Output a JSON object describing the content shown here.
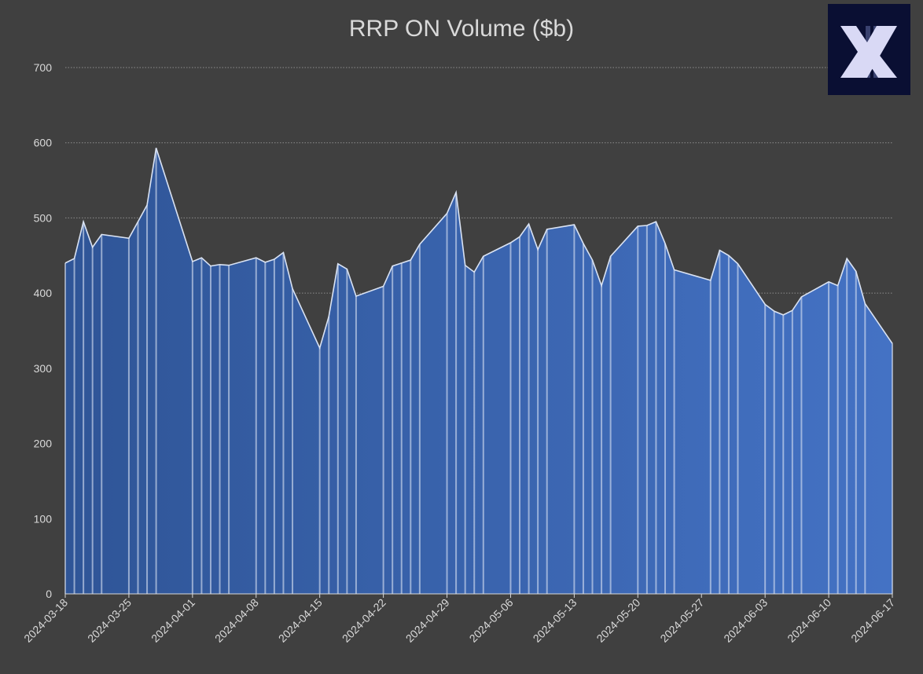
{
  "chart_data": {
    "type": "area",
    "title": "RRP ON Volume ($b)",
    "xlabel": "",
    "ylabel": "",
    "ylim": [
      0,
      700
    ],
    "yticks": [
      0,
      100,
      200,
      300,
      400,
      500,
      600,
      700
    ],
    "xticks": [
      "2024-03-18",
      "2024-03-25",
      "2024-04-01",
      "2024-04-08",
      "2024-04-15",
      "2024-04-22",
      "2024-04-29",
      "2024-05-06",
      "2024-05-13",
      "2024-05-20",
      "2024-05-27",
      "2024-06-03",
      "2024-06-10",
      "2024-06-17"
    ],
    "grid": true,
    "legend": "none",
    "x": [
      "2024-03-18",
      "2024-03-19",
      "2024-03-20",
      "2024-03-21",
      "2024-03-22",
      "2024-03-25",
      "2024-03-26",
      "2024-03-27",
      "2024-03-28",
      "2024-04-01",
      "2024-04-02",
      "2024-04-03",
      "2024-04-04",
      "2024-04-05",
      "2024-04-08",
      "2024-04-09",
      "2024-04-10",
      "2024-04-11",
      "2024-04-12",
      "2024-04-15",
      "2024-04-16",
      "2024-04-17",
      "2024-04-18",
      "2024-04-19",
      "2024-04-22",
      "2024-04-23",
      "2024-04-24",
      "2024-04-25",
      "2024-04-26",
      "2024-04-29",
      "2024-04-30",
      "2024-05-01",
      "2024-05-02",
      "2024-05-03",
      "2024-05-06",
      "2024-05-07",
      "2024-05-08",
      "2024-05-09",
      "2024-05-10",
      "2024-05-13",
      "2024-05-14",
      "2024-05-15",
      "2024-05-16",
      "2024-05-17",
      "2024-05-20",
      "2024-05-21",
      "2024-05-22",
      "2024-05-23",
      "2024-05-24",
      "2024-05-28",
      "2024-05-29",
      "2024-05-30",
      "2024-05-31",
      "2024-06-03",
      "2024-06-04",
      "2024-06-05",
      "2024-06-06",
      "2024-06-07",
      "2024-06-10",
      "2024-06-11",
      "2024-06-12",
      "2024-06-13",
      "2024-06-14",
      "2024-06-17"
    ],
    "values": [
      440,
      446,
      495,
      461,
      478,
      473,
      495,
      517,
      593,
      442,
      447,
      436,
      438,
      437,
      447,
      441,
      445,
      454,
      406,
      327,
      369,
      439,
      432,
      396,
      409,
      436,
      440,
      444,
      465,
      506,
      534,
      437,
      428,
      449,
      467,
      475,
      492,
      458,
      485,
      491,
      466,
      444,
      410,
      449,
      489,
      490,
      495,
      466,
      431,
      417,
      457,
      450,
      439,
      385,
      376,
      371,
      377,
      395,
      415,
      410,
      446,
      429,
      386,
      333
    ],
    "colors": {
      "fill_start": "#2f5597",
      "fill_end": "#4472c4",
      "line": "#dae3f3",
      "background": "#404040",
      "grid": "#8c8c8c",
      "text": "#d9d9d9"
    }
  },
  "logo": {
    "text": "X",
    "background": "#0a0f33",
    "color": "#d9d9f5"
  }
}
